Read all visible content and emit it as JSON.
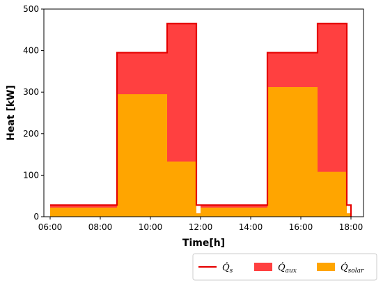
{
  "chart_data": {
    "type": "area",
    "xlabel": "Time[h]",
    "ylabel": "Heat [kW]",
    "ylim": [
      0,
      500
    ],
    "xlim": [
      "05:45",
      "18:30"
    ],
    "y_ticks": [
      0,
      100,
      200,
      300,
      400,
      500
    ],
    "x_ticks": [
      "06:00",
      "08:00",
      "10:00",
      "12:00",
      "14:00",
      "16:00",
      "18:00"
    ],
    "grid": false,
    "legend_position": "bottom-right, below plot",
    "step_times": [
      "06:00",
      "06:10",
      "08:40",
      "10:40",
      "11:50",
      "12:00",
      "12:10",
      "14:40",
      "16:40",
      "17:50",
      "18:00"
    ],
    "series": [
      {
        "name": "Q̇s",
        "kind": "line",
        "color": "#e50000",
        "values": [
          28,
          28,
          395,
          465,
          28,
          28,
          28,
          395,
          465,
          28,
          0
        ]
      },
      {
        "name": "Q̇aux",
        "kind": "fill",
        "color": "#ff4040",
        "values": [
          28,
          28,
          395,
          465,
          8,
          28,
          28,
          395,
          465,
          8,
          0
        ]
      },
      {
        "name": "Q̇solar",
        "kind": "fill",
        "color": "#ffa500",
        "values": [
          22,
          22,
          295,
          133,
          8,
          22,
          22,
          312,
          108,
          8,
          0
        ]
      }
    ],
    "legend": [
      {
        "symbol": "Q̇",
        "sub": "s",
        "kind": "line",
        "color": "#e50000"
      },
      {
        "symbol": "Q̇",
        "sub": "aux",
        "kind": "patch",
        "color": "#ff4040"
      },
      {
        "symbol": "Q̇",
        "sub": "solar",
        "kind": "patch",
        "color": "#ffa500"
      }
    ]
  }
}
